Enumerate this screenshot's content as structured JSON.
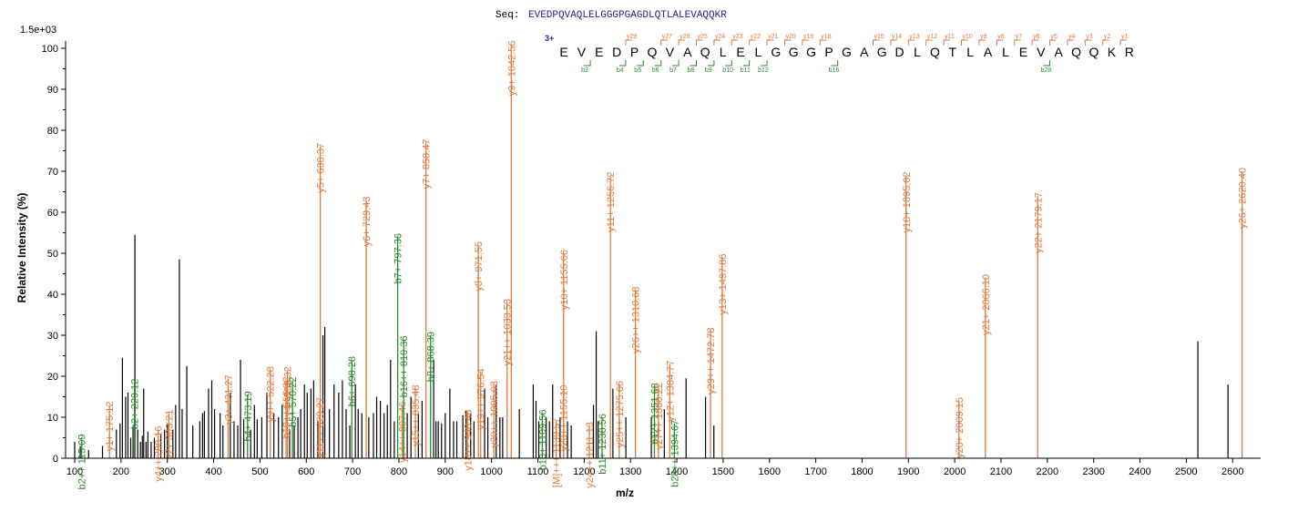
{
  "chart_data": {
    "type": "bar",
    "sequence_label": "Seq:",
    "sequence": "EVEDPQVAQLELGGGPGAGDLQTLALEVAQQKR",
    "charge_label": "3+",
    "scale_label": "1.5e+03",
    "xlabel": "m/z",
    "ylabel": "Relative  Intensity (%)",
    "xlim": [
      92,
      2665
    ],
    "ylim": [
      0,
      101
    ],
    "x_ticks": [
      100,
      200,
      300,
      400,
      500,
      600,
      700,
      800,
      900,
      1000,
      1100,
      1200,
      1300,
      1400,
      1500,
      1600,
      1700,
      1800,
      1900,
      2000,
      2100,
      2200,
      2300,
      2400,
      2500,
      2600
    ],
    "y_ticks": [
      0,
      10,
      20,
      30,
      40,
      50,
      60,
      70,
      80,
      90,
      100
    ],
    "colors": {
      "y_ion": "#e07a3c",
      "b_ion": "#2a8a2a",
      "unassigned": "#000000",
      "seq": "#1f1f8a"
    },
    "residues": [
      "E",
      "V",
      "E",
      "D",
      "P",
      "Q",
      "V",
      "A",
      "Q",
      "L",
      "E",
      "L",
      "G",
      "G",
      "G",
      "P",
      "G",
      "A",
      "G",
      "D",
      "L",
      "Q",
      "T",
      "L",
      "A",
      "L",
      "E",
      "V",
      "A",
      "Q",
      "Q",
      "K",
      "R"
    ],
    "y_ion_markers": [
      "y29",
      "y27",
      "y26",
      "y25",
      "y24",
      "y23",
      "y22",
      "y21",
      "y20",
      "y19",
      "y18",
      "y15",
      "y14",
      "y13",
      "y12",
      "y11",
      "y10",
      "y9",
      "y8",
      "y7",
      "y6",
      "y5",
      "y4",
      "y3",
      "y2",
      "y1"
    ],
    "b_ion_markers": [
      "b2",
      "b4",
      "b5",
      "b6",
      "b7",
      "b8",
      "b9",
      "b10",
      "b11",
      "b12",
      "b16",
      "b28"
    ],
    "annotated_peaks": [
      {
        "x": 115.09,
        "y": 5,
        "type": "b",
        "label": "b2++ 115.09"
      },
      {
        "x": 175.12,
        "y": 13,
        "type": "y",
        "label": "y1+ 175.12"
      },
      {
        "x": 229.12,
        "y": 18.5,
        "type": "b",
        "label": "b2+ 229.12"
      },
      {
        "x": 280.16,
        "y": 7,
        "type": "y",
        "label": "y4++ 280.16"
      },
      {
        "x": 303.21,
        "y": 11,
        "type": "y",
        "label": "y2+ 303.21"
      },
      {
        "x": 431.27,
        "y": 19.5,
        "type": "y",
        "label": "y3+ 431.27"
      },
      {
        "x": 473.19,
        "y": 15.5,
        "type": "b",
        "label": "b4+ 473.19"
      },
      {
        "x": 522.28,
        "y": 21.5,
        "type": "y",
        "label": "y9++ 522.28"
      },
      {
        "x": 556.32,
        "y": 19,
        "type": "y",
        "label": "b10++ 556.32"
      },
      {
        "x": 559.32,
        "y": 21.5,
        "type": "y",
        "label": "y4+ 559.32"
      },
      {
        "x": 570.22,
        "y": 19,
        "type": "b",
        "label": "b5+ 570.22"
      },
      {
        "x": 629.27,
        "y": 14,
        "type": "y",
        "label": "y11++ 629.27"
      },
      {
        "x": 630.37,
        "y": 76,
        "type": "y",
        "label": "y5+ 630.37"
      },
      {
        "x": 698.28,
        "y": 24,
        "type": "b",
        "label": "b6+ 698.28"
      },
      {
        "x": 729.43,
        "y": 63,
        "type": "y",
        "label": "y6+ 729.43"
      },
      {
        "x": 797.36,
        "y": 54,
        "type": "b",
        "label": "b7+ 797.36"
      },
      {
        "x": 807.46,
        "y": 13,
        "type": "y",
        "label": "y14++ 807.46"
      },
      {
        "x": 810.36,
        "y": 29,
        "type": "b",
        "label": "b16++ 810.36"
      },
      {
        "x": 835.48,
        "y": 17,
        "type": "y",
        "label": "y15++ 835.48"
      },
      {
        "x": 858.47,
        "y": 77,
        "type": "y",
        "label": "y7+ 858.47"
      },
      {
        "x": 868.39,
        "y": 30,
        "type": "b",
        "label": "b8+ 868.39"
      },
      {
        "x": 948.48,
        "y": 11,
        "type": "y",
        "label": "y18++ 948.48"
      },
      {
        "x": 971.55,
        "y": 52,
        "type": "y",
        "label": "y8+ 971.55"
      },
      {
        "x": 976.54,
        "y": 21,
        "type": "y",
        "label": "y19++ 976.54"
      },
      {
        "x": 1005.03,
        "y": 18,
        "type": "y",
        "label": "y20++ 1005.03"
      },
      {
        "x": 1033.53,
        "y": 38,
        "type": "y",
        "label": "y21++ 1033.53"
      },
      {
        "x": 1042.56,
        "y": 101,
        "type": "y",
        "label": "y9+ 1042.56"
      },
      {
        "x": 1109.56,
        "y": 11,
        "type": "b",
        "label": "b10+ 1109.56"
      },
      {
        "x": 1139.57,
        "y": 9,
        "type": "y",
        "label": "[M]+++ 1139.57"
      },
      {
        "x": 1155.1,
        "y": 17,
        "type": "y",
        "label": "y23++ 1155.10"
      },
      {
        "x": 1155.66,
        "y": 50,
        "type": "y",
        "label": "y10+ 1155.66"
      },
      {
        "x": 1211.13,
        "y": 8,
        "type": "y",
        "label": "y24++ 1211.13"
      },
      {
        "x": 1238.56,
        "y": 10,
        "type": "b",
        "label": "b11+ 1238.56"
      },
      {
        "x": 1256.72,
        "y": 69,
        "type": "y",
        "label": "y11+ 1256.72"
      },
      {
        "x": 1275.66,
        "y": 18,
        "type": "y",
        "label": "y25++ 1275.66"
      },
      {
        "x": 1310.68,
        "y": 41,
        "type": "y",
        "label": "y26++ 1310.68"
      },
      {
        "x": 1351.68,
        "y": 17.5,
        "type": "b",
        "label": "b12+ 1351.68"
      },
      {
        "x": 1360.22,
        "y": 17.5,
        "type": "y",
        "label": "y27++ 1360.22"
      },
      {
        "x": 1384.77,
        "y": 23,
        "type": "y",
        "label": "y12+ 1384.77"
      },
      {
        "x": 1394.67,
        "y": 8.5,
        "type": "b",
        "label": "b28++ 1394.67"
      },
      {
        "x": 1472.78,
        "y": 31,
        "type": "y",
        "label": "y29++ 1472.78"
      },
      {
        "x": 1497.86,
        "y": 49,
        "type": "y",
        "label": "y13+ 1497.86"
      },
      {
        "x": 1895.02,
        "y": 69,
        "type": "y",
        "label": "y18+ 1895.02"
      },
      {
        "x": 2009.15,
        "y": 14,
        "type": "y",
        "label": "y20+ 2009.15"
      },
      {
        "x": 2066.1,
        "y": 44,
        "type": "y",
        "label": "y21+ 2066.10"
      },
      {
        "x": 2179.17,
        "y": 64,
        "type": "y",
        "label": "y22+ 2179.17"
      },
      {
        "x": 2620.4,
        "y": 70,
        "type": "y",
        "label": "y26+ 2620.40"
      }
    ],
    "unassigned_peaks": [
      {
        "x": 100,
        "y": 4
      },
      {
        "x": 112,
        "y": 3
      },
      {
        "x": 130,
        "y": 2
      },
      {
        "x": 160,
        "y": 3
      },
      {
        "x": 190,
        "y": 7
      },
      {
        "x": 198,
        "y": 8.5
      },
      {
        "x": 203,
        "y": 24.5
      },
      {
        "x": 210,
        "y": 15
      },
      {
        "x": 215,
        "y": 16
      },
      {
        "x": 221,
        "y": 5
      },
      {
        "x": 226,
        "y": 8
      },
      {
        "x": 230,
        "y": 54.5
      },
      {
        "x": 236,
        "y": 7
      },
      {
        "x": 242,
        "y": 4
      },
      {
        "x": 246,
        "y": 5.5
      },
      {
        "x": 249,
        "y": 17
      },
      {
        "x": 254,
        "y": 4
      },
      {
        "x": 258,
        "y": 6.5
      },
      {
        "x": 265,
        "y": 4
      },
      {
        "x": 272,
        "y": 5
      },
      {
        "x": 286,
        "y": 6
      },
      {
        "x": 294,
        "y": 7
      },
      {
        "x": 300,
        "y": 8.5
      },
      {
        "x": 312,
        "y": 7
      },
      {
        "x": 318,
        "y": 13
      },
      {
        "x": 326,
        "y": 48.5
      },
      {
        "x": 332,
        "y": 12
      },
      {
        "x": 342,
        "y": 22.5
      },
      {
        "x": 355,
        "y": 8
      },
      {
        "x": 370,
        "y": 9
      },
      {
        "x": 376,
        "y": 11
      },
      {
        "x": 380,
        "y": 11.5
      },
      {
        "x": 389,
        "y": 17
      },
      {
        "x": 396,
        "y": 19
      },
      {
        "x": 402,
        "y": 12
      },
      {
        "x": 414,
        "y": 11
      },
      {
        "x": 420,
        "y": 8
      },
      {
        "x": 436,
        "y": 16
      },
      {
        "x": 444,
        "y": 9
      },
      {
        "x": 452,
        "y": 8
      },
      {
        "x": 458,
        "y": 24
      },
      {
        "x": 465,
        "y": 9.5
      },
      {
        "x": 480,
        "y": 7
      },
      {
        "x": 488,
        "y": 13
      },
      {
        "x": 494,
        "y": 9.5
      },
      {
        "x": 504,
        "y": 10
      },
      {
        "x": 515,
        "y": 16
      },
      {
        "x": 530,
        "y": 11
      },
      {
        "x": 540,
        "y": 10
      },
      {
        "x": 548,
        "y": 13
      },
      {
        "x": 564,
        "y": 7
      },
      {
        "x": 574,
        "y": 8
      },
      {
        "x": 582,
        "y": 10
      },
      {
        "x": 588,
        "y": 12
      },
      {
        "x": 596,
        "y": 18
      },
      {
        "x": 602,
        "y": 16
      },
      {
        "x": 610,
        "y": 17
      },
      {
        "x": 616,
        "y": 19
      },
      {
        "x": 625,
        "y": 9
      },
      {
        "x": 636,
        "y": 30
      },
      {
        "x": 640,
        "y": 32
      },
      {
        "x": 650,
        "y": 12
      },
      {
        "x": 660,
        "y": 18
      },
      {
        "x": 670,
        "y": 16
      },
      {
        "x": 678,
        "y": 19
      },
      {
        "x": 686,
        "y": 12
      },
      {
        "x": 694,
        "y": 8
      },
      {
        "x": 706,
        "y": 18
      },
      {
        "x": 712,
        "y": 12
      },
      {
        "x": 720,
        "y": 11
      },
      {
        "x": 735,
        "y": 10
      },
      {
        "x": 745,
        "y": 11
      },
      {
        "x": 752,
        "y": 15
      },
      {
        "x": 760,
        "y": 14
      },
      {
        "x": 768,
        "y": 11
      },
      {
        "x": 775,
        "y": 13
      },
      {
        "x": 782,
        "y": 24
      },
      {
        "x": 790,
        "y": 9
      },
      {
        "x": 818,
        "y": 11
      },
      {
        "x": 826,
        "y": 15
      },
      {
        "x": 842,
        "y": 11
      },
      {
        "x": 850,
        "y": 14
      },
      {
        "x": 875,
        "y": 24
      },
      {
        "x": 880,
        "y": 9
      },
      {
        "x": 885,
        "y": 9
      },
      {
        "x": 892,
        "y": 8.5
      },
      {
        "x": 900,
        "y": 11
      },
      {
        "x": 910,
        "y": 17
      },
      {
        "x": 918,
        "y": 9
      },
      {
        "x": 925,
        "y": 9
      },
      {
        "x": 938,
        "y": 10.5
      },
      {
        "x": 945,
        "y": 11.5
      },
      {
        "x": 955,
        "y": 11
      },
      {
        "x": 962,
        "y": 9
      },
      {
        "x": 985,
        "y": 17
      },
      {
        "x": 992,
        "y": 10
      },
      {
        "x": 1010,
        "y": 18
      },
      {
        "x": 1018,
        "y": 10
      },
      {
        "x": 1024,
        "y": 10
      },
      {
        "x": 1060,
        "y": 12
      },
      {
        "x": 1090,
        "y": 18
      },
      {
        "x": 1096,
        "y": 14
      },
      {
        "x": 1102,
        "y": 9
      },
      {
        "x": 1118,
        "y": 10
      },
      {
        "x": 1125,
        "y": 9
      },
      {
        "x": 1132,
        "y": 18
      },
      {
        "x": 1148,
        "y": 10
      },
      {
        "x": 1164,
        "y": 9
      },
      {
        "x": 1172,
        "y": 8
      },
      {
        "x": 1220,
        "y": 13
      },
      {
        "x": 1226,
        "y": 31
      },
      {
        "x": 1230,
        "y": 9
      },
      {
        "x": 1262,
        "y": 17
      },
      {
        "x": 1290,
        "y": 10
      },
      {
        "x": 1345,
        "y": 10
      },
      {
        "x": 1373,
        "y": 12
      },
      {
        "x": 1420,
        "y": 19.5
      },
      {
        "x": 1462,
        "y": 15
      },
      {
        "x": 1480,
        "y": 8
      },
      {
        "x": 2525,
        "y": 28.5
      },
      {
        "x": 2590,
        "y": 18
      }
    ]
  }
}
